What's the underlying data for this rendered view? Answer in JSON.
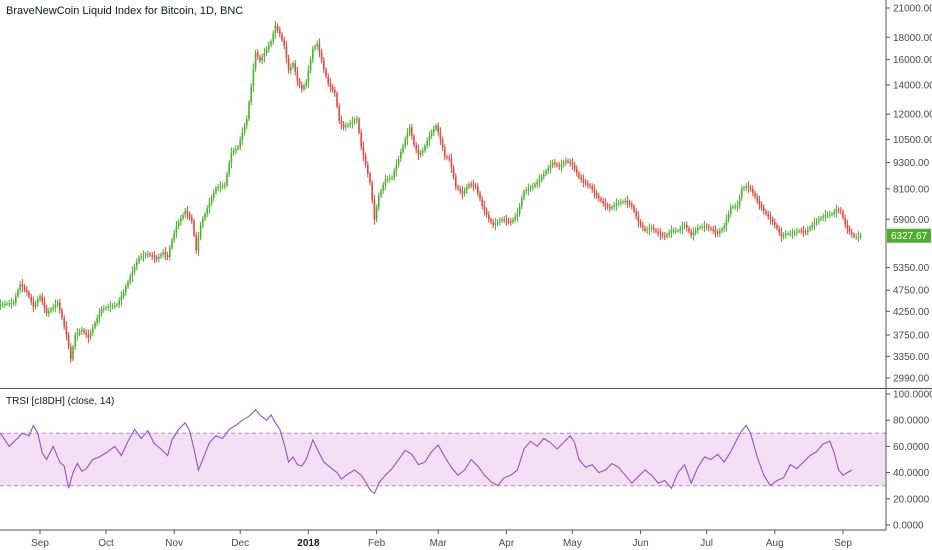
{
  "colors": {
    "up": "#53b987",
    "up_body": "#4caf2e",
    "down": "#eb4d5c",
    "down_body": "#e2463c",
    "rsi_line": "#9c4fc7",
    "rsi_band": "#f3e0f5",
    "rsi_band_border": "#b48ac0",
    "last_price_bg": "#4caf2e",
    "axis_line": "#555555"
  },
  "chart_data": [
    {
      "type": "candlestick",
      "title": "BraveNewCoin Liquid Index for Bitcoin, 1D, BNC",
      "scale": "log",
      "ylim": [
        2760,
        21500
      ],
      "y_ticks": [
        21000,
        18000,
        16000,
        14000,
        12000,
        10500,
        9300,
        8100,
        6900,
        5350,
        4750,
        4250,
        3750,
        3350,
        2990
      ],
      "y_tick_labels": [
        "21000.00",
        "18000.00",
        "16000.00",
        "14000.00",
        "12000.00",
        "10500.00",
        "9300.00",
        "8100.00",
        "6900.00",
        "5350.00",
        "4750.00",
        "4250.00",
        "3750.00",
        "3350.00",
        "2990.00"
      ],
      "last_price": 6327.67,
      "last_price_label": "6327.67",
      "x_labels": [
        {
          "label": "Sep",
          "day": 0,
          "bold": false
        },
        {
          "label": "Oct",
          "day": 30,
          "bold": false
        },
        {
          "label": "Nov",
          "day": 61,
          "bold": false
        },
        {
          "label": "Dec",
          "day": 91,
          "bold": false
        },
        {
          "label": "2018",
          "day": 122,
          "bold": true
        },
        {
          "label": "Feb",
          "day": 153,
          "bold": false
        },
        {
          "label": "Mar",
          "day": 181,
          "bold": false
        },
        {
          "label": "Apr",
          "day": 212,
          "bold": false
        },
        {
          "label": "May",
          "day": 242,
          "bold": false
        },
        {
          "label": "Jun",
          "day": 273,
          "bold": false
        },
        {
          "label": "Jul",
          "day": 303,
          "bold": false
        },
        {
          "label": "Aug",
          "day": 334,
          "bold": false
        },
        {
          "label": "Sep",
          "day": 365,
          "bold": false
        }
      ],
      "close_anchors": [
        [
          -18,
          4400
        ],
        [
          -12,
          4450
        ],
        [
          -9,
          4900
        ],
        [
          -6,
          4700
        ],
        [
          -3,
          4350
        ],
        [
          0,
          4600
        ],
        [
          3,
          4200
        ],
        [
          8,
          4450
        ],
        [
          12,
          3750
        ],
        [
          14,
          3300
        ],
        [
          16,
          3750
        ],
        [
          19,
          3850
        ],
        [
          22,
          3700
        ],
        [
          25,
          4000
        ],
        [
          28,
          4300
        ],
        [
          31,
          4350
        ],
        [
          35,
          4400
        ],
        [
          38,
          4700
        ],
        [
          41,
          5100
        ],
        [
          45,
          5650
        ],
        [
          49,
          5750
        ],
        [
          53,
          5600
        ],
        [
          56,
          5800
        ],
        [
          58,
          5650
        ],
        [
          60,
          6200
        ],
        [
          62,
          6650
        ],
        [
          66,
          7200
        ],
        [
          69,
          6850
        ],
        [
          71,
          5850
        ],
        [
          73,
          6700
        ],
        [
          76,
          7300
        ],
        [
          80,
          8150
        ],
        [
          84,
          8250
        ],
        [
          87,
          9800
        ],
        [
          90,
          10100
        ],
        [
          92,
          10900
        ],
        [
          94,
          11700
        ],
        [
          96,
          13900
        ],
        [
          98,
          16600
        ],
        [
          100,
          15900
        ],
        [
          103,
          16900
        ],
        [
          105,
          17600
        ],
        [
          107,
          19100
        ],
        [
          109,
          18300
        ],
        [
          111,
          17200
        ],
        [
          113,
          15100
        ],
        [
          115,
          15700
        ],
        [
          117,
          14300
        ],
        [
          119,
          13700
        ],
        [
          121,
          14200
        ],
        [
          124,
          16900
        ],
        [
          126,
          17400
        ],
        [
          129,
          15200
        ],
        [
          131,
          14100
        ],
        [
          134,
          13400
        ],
        [
          136,
          11600
        ],
        [
          138,
          11200
        ],
        [
          141,
          11450
        ],
        [
          144,
          11700
        ],
        [
          146,
          10100
        ],
        [
          148,
          9200
        ],
        [
          150,
          8350
        ],
        [
          152,
          6900
        ],
        [
          154,
          7800
        ],
        [
          157,
          8500
        ],
        [
          160,
          8600
        ],
        [
          163,
          9500
        ],
        [
          166,
          10500
        ],
        [
          168,
          11200
        ],
        [
          170,
          10200
        ],
        [
          172,
          9700
        ],
        [
          174,
          9900
        ],
        [
          177,
          10700
        ],
        [
          180,
          11300
        ],
        [
          182,
          10500
        ],
        [
          184,
          9600
        ],
        [
          186,
          9500
        ],
        [
          189,
          8200
        ],
        [
          192,
          7900
        ],
        [
          195,
          8300
        ],
        [
          198,
          8200
        ],
        [
          201,
          7400
        ],
        [
          204,
          6900
        ],
        [
          206,
          6700
        ],
        [
          210,
          6900
        ],
        [
          214,
          6800
        ],
        [
          217,
          7100
        ],
        [
          220,
          8000
        ],
        [
          224,
          8200
        ],
        [
          227,
          8500
        ],
        [
          230,
          8900
        ],
        [
          233,
          9300
        ],
        [
          236,
          9100
        ],
        [
          239,
          9400
        ],
        [
          242,
          9200
        ],
        [
          245,
          8600
        ],
        [
          247,
          8400
        ],
        [
          250,
          8200
        ],
        [
          253,
          7800
        ],
        [
          256,
          7500
        ],
        [
          259,
          7300
        ],
        [
          262,
          7500
        ],
        [
          266,
          7600
        ],
        [
          269,
          7400
        ],
        [
          272,
          6800
        ],
        [
          275,
          6500
        ],
        [
          278,
          6600
        ],
        [
          281,
          6400
        ],
        [
          284,
          6300
        ],
        [
          287,
          6500
        ],
        [
          290,
          6500
        ],
        [
          293,
          6700
        ],
        [
          296,
          6350
        ],
        [
          299,
          6600
        ],
        [
          302,
          6650
        ],
        [
          305,
          6550
        ],
        [
          308,
          6400
        ],
        [
          311,
          6650
        ],
        [
          314,
          7350
        ],
        [
          317,
          7400
        ],
        [
          319,
          8100
        ],
        [
          321,
          8200
        ],
        [
          323,
          8100
        ],
        [
          326,
          7600
        ],
        [
          329,
          7200
        ],
        [
          332,
          6900
        ],
        [
          334,
          6700
        ],
        [
          337,
          6300
        ],
        [
          339,
          6400
        ],
        [
          342,
          6400
        ],
        [
          345,
          6500
        ],
        [
          348,
          6450
        ],
        [
          351,
          6700
        ],
        [
          354,
          6900
        ],
        [
          357,
          7050
        ],
        [
          360,
          7100
        ],
        [
          362,
          7250
        ],
        [
          364,
          7200
        ],
        [
          366,
          6700
        ],
        [
          368,
          6450
        ],
        [
          370,
          6300
        ],
        [
          372,
          6300
        ],
        [
          373,
          6327.67
        ]
      ],
      "candle_volatility": [
        0.018,
        0.029,
        0.047,
        0.026,
        0.031
      ]
    },
    {
      "type": "line",
      "title": "TRSI [cI8DH] (close, 14)",
      "ylim": [
        -5,
        100
      ],
      "y_ticks": [
        100,
        80,
        60,
        40,
        20,
        0
      ],
      "y_tick_labels": [
        "100.0000",
        "80.0000",
        "60.0000",
        "40.0000",
        "20.0000",
        "0.0000"
      ],
      "band": [
        30,
        70
      ],
      "rsi_anchors": [
        [
          -18,
          70
        ],
        [
          -16,
          65
        ],
        [
          -14,
          60
        ],
        [
          -11,
          65
        ],
        [
          -8,
          70
        ],
        [
          -5,
          68
        ],
        [
          -3,
          76
        ],
        [
          -1,
          70
        ],
        [
          1,
          55
        ],
        [
          3,
          50
        ],
        [
          6,
          60
        ],
        [
          9,
          48
        ],
        [
          11,
          45
        ],
        [
          13,
          28
        ],
        [
          15,
          40
        ],
        [
          17,
          47
        ],
        [
          19,
          41
        ],
        [
          21,
          43
        ],
        [
          24,
          50
        ],
        [
          27,
          52
        ],
        [
          30,
          55
        ],
        [
          34,
          60
        ],
        [
          37,
          53
        ],
        [
          40,
          64
        ],
        [
          43,
          73
        ],
        [
          46,
          66
        ],
        [
          49,
          72
        ],
        [
          52,
          62
        ],
        [
          55,
          58
        ],
        [
          58,
          53
        ],
        [
          60,
          65
        ],
        [
          63,
          73
        ],
        [
          66,
          78
        ],
        [
          68,
          72
        ],
        [
          70,
          58
        ],
        [
          72,
          42
        ],
        [
          74,
          50
        ],
        [
          77,
          63
        ],
        [
          80,
          68
        ],
        [
          83,
          66
        ],
        [
          86,
          73
        ],
        [
          89,
          76
        ],
        [
          92,
          80
        ],
        [
          95,
          83
        ],
        [
          98,
          88
        ],
        [
          100,
          84
        ],
        [
          103,
          80
        ],
        [
          105,
          84
        ],
        [
          107,
          78
        ],
        [
          109,
          73
        ],
        [
          111,
          62
        ],
        [
          113,
          48
        ],
        [
          115,
          52
        ],
        [
          117,
          46
        ],
        [
          119,
          45
        ],
        [
          121,
          50
        ],
        [
          124,
          65
        ],
        [
          126,
          58
        ],
        [
          129,
          48
        ],
        [
          132,
          44
        ],
        [
          135,
          40
        ],
        [
          137,
          35
        ],
        [
          140,
          39
        ],
        [
          143,
          42
        ],
        [
          146,
          38
        ],
        [
          148,
          33
        ],
        [
          150,
          27
        ],
        [
          152,
          24
        ],
        [
          154,
          32
        ],
        [
          157,
          38
        ],
        [
          160,
          43
        ],
        [
          163,
          50
        ],
        [
          166,
          57
        ],
        [
          169,
          54
        ],
        [
          172,
          46
        ],
        [
          175,
          48
        ],
        [
          178,
          56
        ],
        [
          181,
          61
        ],
        [
          184,
          52
        ],
        [
          187,
          44
        ],
        [
          190,
          38
        ],
        [
          193,
          42
        ],
        [
          196,
          50
        ],
        [
          199,
          45
        ],
        [
          202,
          38
        ],
        [
          205,
          33
        ],
        [
          208,
          30
        ],
        [
          211,
          36
        ],
        [
          214,
          38
        ],
        [
          217,
          42
        ],
        [
          220,
          58
        ],
        [
          223,
          64
        ],
        [
          226,
          60
        ],
        [
          229,
          66
        ],
        [
          232,
          63
        ],
        [
          235,
          58
        ],
        [
          238,
          63
        ],
        [
          241,
          68
        ],
        [
          243,
          63
        ],
        [
          245,
          50
        ],
        [
          248,
          44
        ],
        [
          251,
          46
        ],
        [
          254,
          40
        ],
        [
          257,
          42
        ],
        [
          260,
          47
        ],
        [
          263,
          44
        ],
        [
          266,
          38
        ],
        [
          269,
          32
        ],
        [
          272,
          37
        ],
        [
          275,
          42
        ],
        [
          278,
          38
        ],
        [
          281,
          32
        ],
        [
          284,
          34
        ],
        [
          287,
          28
        ],
        [
          290,
          40
        ],
        [
          293,
          46
        ],
        [
          296,
          32
        ],
        [
          299,
          44
        ],
        [
          302,
          52
        ],
        [
          305,
          50
        ],
        [
          308,
          54
        ],
        [
          311,
          48
        ],
        [
          314,
          56
        ],
        [
          317,
          66
        ],
        [
          319,
          72
        ],
        [
          321,
          76
        ],
        [
          323,
          70
        ],
        [
          326,
          52
        ],
        [
          329,
          38
        ],
        [
          332,
          30
        ],
        [
          335,
          34
        ],
        [
          338,
          36
        ],
        [
          341,
          46
        ],
        [
          344,
          43
        ],
        [
          347,
          48
        ],
        [
          350,
          53
        ],
        [
          353,
          56
        ],
        [
          356,
          62
        ],
        [
          359,
          64
        ],
        [
          361,
          55
        ],
        [
          363,
          42
        ],
        [
          365,
          38
        ],
        [
          367,
          40
        ],
        [
          369,
          42
        ]
      ]
    }
  ]
}
